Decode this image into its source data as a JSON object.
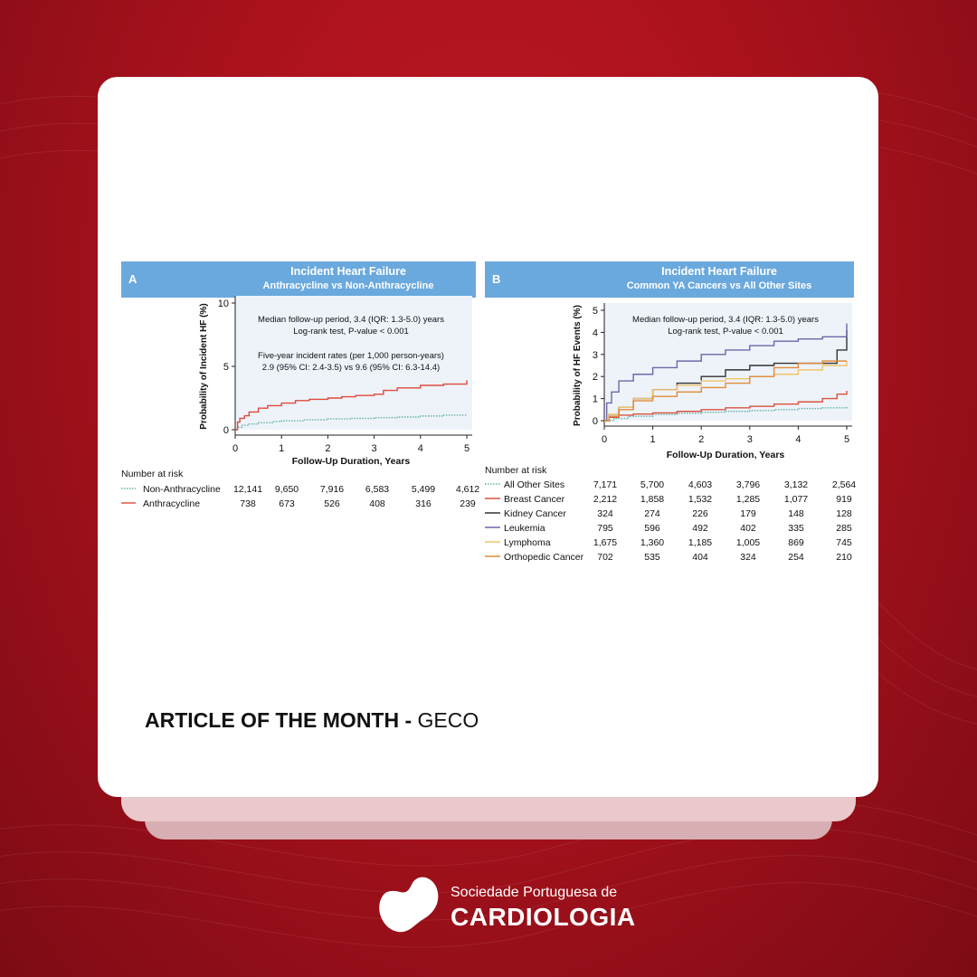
{
  "colors": {
    "background": "#b01320",
    "card": "#ffffff",
    "header": "#6aa9dd",
    "plot_bg": "#eef3fa"
  },
  "chart_data": [
    {
      "type": "line",
      "panel": "A",
      "title": "Incident Heart Failure",
      "subtitle": "Anthracycline vs Non-Anthracycline",
      "xlabel": "Follow-Up Duration, Years",
      "ylabel": "Probability of Incident HF (%)",
      "xlim": [
        0,
        5
      ],
      "ylim": [
        0,
        10
      ],
      "xticks": [
        0,
        1,
        2,
        3,
        4,
        5
      ],
      "yticks": [
        0,
        5,
        10
      ],
      "annotations": [
        "Median follow-up period, 3.4 (IQR: 1.3-5.0) years",
        "Log-rank test, P-value < 0.001",
        "Five-year incident rates (per 1,000 person-years)",
        "2.9 (95% CI: 2.4-3.5) vs 9.6 (95% CI: 6.3-14.4)"
      ],
      "series": [
        {
          "name": "Non-Anthracycline",
          "color": "#5fb0a8",
          "dotted": true,
          "x": [
            0,
            0.05,
            0.15,
            0.3,
            0.5,
            0.8,
            1,
            1.5,
            2,
            2.5,
            3,
            3.5,
            4,
            4.5,
            5
          ],
          "y": [
            0,
            0.2,
            0.35,
            0.45,
            0.55,
            0.65,
            0.7,
            0.78,
            0.85,
            0.9,
            0.95,
            1.0,
            1.08,
            1.15,
            1.2
          ]
        },
        {
          "name": "Anthracycline",
          "color": "#e04a3b",
          "dotted": false,
          "x": [
            0,
            0.05,
            0.1,
            0.2,
            0.3,
            0.5,
            0.7,
            1,
            1.3,
            1.6,
            2,
            2.3,
            2.6,
            3,
            3.2,
            3.5,
            4,
            4.5,
            5
          ],
          "y": [
            0,
            0.6,
            0.9,
            1.1,
            1.4,
            1.7,
            1.9,
            2.1,
            2.3,
            2.4,
            2.5,
            2.6,
            2.7,
            2.8,
            3.1,
            3.3,
            3.5,
            3.6,
            3.9
          ]
        }
      ],
      "risk_table": {
        "label": "Number at risk",
        "rows": [
          {
            "name": "Non-Anthracycline",
            "values": [
              "12,141",
              "9,650",
              "7,916",
              "6,583",
              "5,499",
              "4,612"
            ]
          },
          {
            "name": "Anthracycline",
            "values": [
              "738",
              "673",
              "526",
              "408",
              "316",
              "239"
            ]
          }
        ]
      }
    },
    {
      "type": "line",
      "panel": "B",
      "title": "Incident Heart Failure",
      "subtitle": "Common YA Cancers vs All Other Sites",
      "xlabel": "Follow-Up Duration, Years",
      "ylabel": "Probability of HF Events (%)",
      "xlim": [
        0,
        5
      ],
      "ylim": [
        0,
        5
      ],
      "xticks": [
        0,
        1,
        2,
        3,
        4,
        5
      ],
      "yticks": [
        0,
        1,
        2,
        3,
        4,
        5
      ],
      "annotations": [
        "Median follow-up period, 3.4 (IQR: 1.3-5.0) years",
        "Log-rank test, P-value < 0.001"
      ],
      "series": [
        {
          "name": "All Other Sites",
          "color": "#5fb0a8",
          "dotted": true,
          "x": [
            0,
            0.2,
            0.5,
            1,
            1.5,
            2,
            2.5,
            3,
            3.5,
            4,
            4.5,
            5
          ],
          "y": [
            0,
            0.1,
            0.2,
            0.28,
            0.33,
            0.38,
            0.42,
            0.46,
            0.5,
            0.55,
            0.58,
            0.62
          ]
        },
        {
          "name": "Breast Cancer",
          "color": "#d9533f",
          "dotted": false,
          "x": [
            0,
            0.1,
            0.3,
            0.6,
            1,
            1.5,
            2,
            2.5,
            3,
            3.5,
            4,
            4.5,
            4.8,
            5
          ],
          "y": [
            0,
            0.15,
            0.25,
            0.3,
            0.35,
            0.42,
            0.5,
            0.58,
            0.65,
            0.75,
            0.85,
            1.0,
            1.2,
            1.35
          ]
        },
        {
          "name": "Kidney Cancer",
          "color": "#333333",
          "dotted": false,
          "x": [
            0,
            0.1,
            0.3,
            0.6,
            1,
            1.5,
            2,
            2.5,
            3,
            3.5,
            4,
            4.5,
            4.8,
            5
          ],
          "y": [
            0,
            0.3,
            0.6,
            1.0,
            1.4,
            1.7,
            2.0,
            2.3,
            2.5,
            2.6,
            2.6,
            2.6,
            3.2,
            4.1
          ]
        },
        {
          "name": "Leukemia",
          "color": "#6b67a8",
          "dotted": false,
          "x": [
            0,
            0.05,
            0.15,
            0.3,
            0.6,
            1,
            1.5,
            2,
            2.5,
            3,
            3.5,
            4,
            4.5,
            5
          ],
          "y": [
            0,
            0.8,
            1.3,
            1.8,
            2.1,
            2.4,
            2.7,
            3.0,
            3.2,
            3.4,
            3.6,
            3.7,
            3.8,
            4.4
          ]
        },
        {
          "name": "Lymphoma",
          "color": "#f0c36a",
          "dotted": false,
          "x": [
            0,
            0.1,
            0.3,
            0.6,
            1,
            1.5,
            2,
            2.5,
            3,
            3.5,
            4,
            4.5,
            5
          ],
          "y": [
            0,
            0.3,
            0.6,
            1.0,
            1.4,
            1.6,
            1.8,
            1.9,
            2.0,
            2.1,
            2.3,
            2.5,
            2.7
          ]
        },
        {
          "name": "Orthopedic Cancer",
          "color": "#e08a3a",
          "dotted": false,
          "x": [
            0,
            0.1,
            0.3,
            0.6,
            1,
            1.5,
            2,
            2.5,
            3,
            3.5,
            4,
            4.5,
            5
          ],
          "y": [
            0,
            0.2,
            0.5,
            0.9,
            1.1,
            1.3,
            1.5,
            1.7,
            2.0,
            2.4,
            2.6,
            2.7,
            2.7
          ]
        }
      ],
      "risk_table": {
        "label": "Number at risk",
        "rows": [
          {
            "name": "All Other Sites",
            "values": [
              "7,171",
              "5,700",
              "4,603",
              "3,796",
              "3,132",
              "2,564"
            ]
          },
          {
            "name": "Breast Cancer",
            "values": [
              "2,212",
              "1,858",
              "1,532",
              "1,285",
              "1,077",
              "919"
            ]
          },
          {
            "name": "Kidney Cancer",
            "values": [
              "324",
              "274",
              "226",
              "179",
              "148",
              "128"
            ]
          },
          {
            "name": "Leukemia",
            "values": [
              "795",
              "596",
              "492",
              "402",
              "335",
              "285"
            ]
          },
          {
            "name": "Lymphoma",
            "values": [
              "1,675",
              "1,360",
              "1,185",
              "1,005",
              "869",
              "745"
            ]
          },
          {
            "name": "Orthopedic Cancer",
            "values": [
              "702",
              "535",
              "404",
              "324",
              "254",
              "210"
            ]
          }
        ]
      }
    }
  ],
  "article": {
    "bold": "ARTICLE OF THE MONTH -",
    "rest": "GECO"
  },
  "logo": {
    "line1": "Sociedade Portuguesa de",
    "line2": "CARDIOLOGIA",
    "icon": "heart-icon"
  }
}
